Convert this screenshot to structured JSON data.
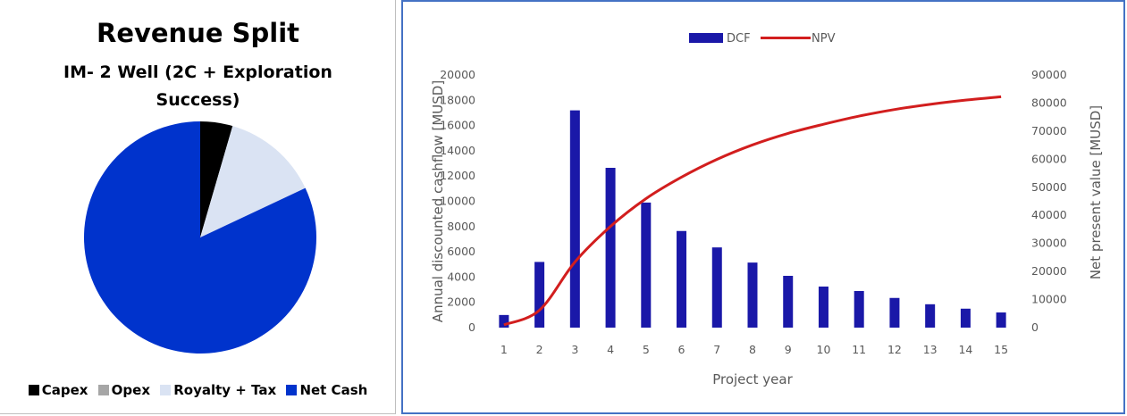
{
  "chart_data": [
    {
      "type": "pie",
      "title": "Revenue Split",
      "subtitle": "IM- 2 Well (2C  + Exploration Success)",
      "legend_position": "bottom",
      "slices": [
        {
          "label": "Capex",
          "value": 4.5,
          "color": "#000000"
        },
        {
          "label": "Opex",
          "value": 0.0,
          "color": "#a6a6a6"
        },
        {
          "label": "Royalty + Tax",
          "value": 13.5,
          "color": "#dae3f3"
        },
        {
          "label": "Net Cash",
          "value": 82.0,
          "color": "#0033cc"
        }
      ]
    },
    {
      "type": "bar",
      "xlabel": "Project year",
      "categories": [
        "1",
        "2",
        "3",
        "4",
        "5",
        "6",
        "7",
        "8",
        "9",
        "10",
        "11",
        "12",
        "13",
        "14",
        "15"
      ],
      "legend_position": "top",
      "grid": false,
      "series": [
        {
          "name": "DCF",
          "type": "bar",
          "axis": "left",
          "color": "#1a18a8",
          "values": [
            1000,
            5200,
            17200,
            12650,
            9900,
            7650,
            6350,
            5150,
            4100,
            3250,
            2900,
            2350,
            1850,
            1500,
            1200
          ]
        },
        {
          "name": "NPV",
          "type": "line",
          "axis": "right",
          "color": "#d21e1e",
          "values": [
            1000,
            6200,
            23400,
            36050,
            45950,
            53600,
            59950,
            65100,
            69200,
            72450,
            75350,
            77700,
            79550,
            81050,
            82250
          ]
        }
      ],
      "y_left": {
        "label": "Annual discounted cashflow [MUSD]",
        "lim": [
          0,
          20000
        ],
        "ticks": [
          "0",
          "2000",
          "4000",
          "6000",
          "8000",
          "10000",
          "12000",
          "14000",
          "16000",
          "18000",
          "20000"
        ]
      },
      "y_right": {
        "label": "Net present value [MUSD]",
        "lim": [
          0,
          90000
        ],
        "ticks": [
          "0",
          "10000",
          "20000",
          "30000",
          "40000",
          "50000",
          "60000",
          "70000",
          "80000",
          "90000"
        ]
      }
    }
  ]
}
